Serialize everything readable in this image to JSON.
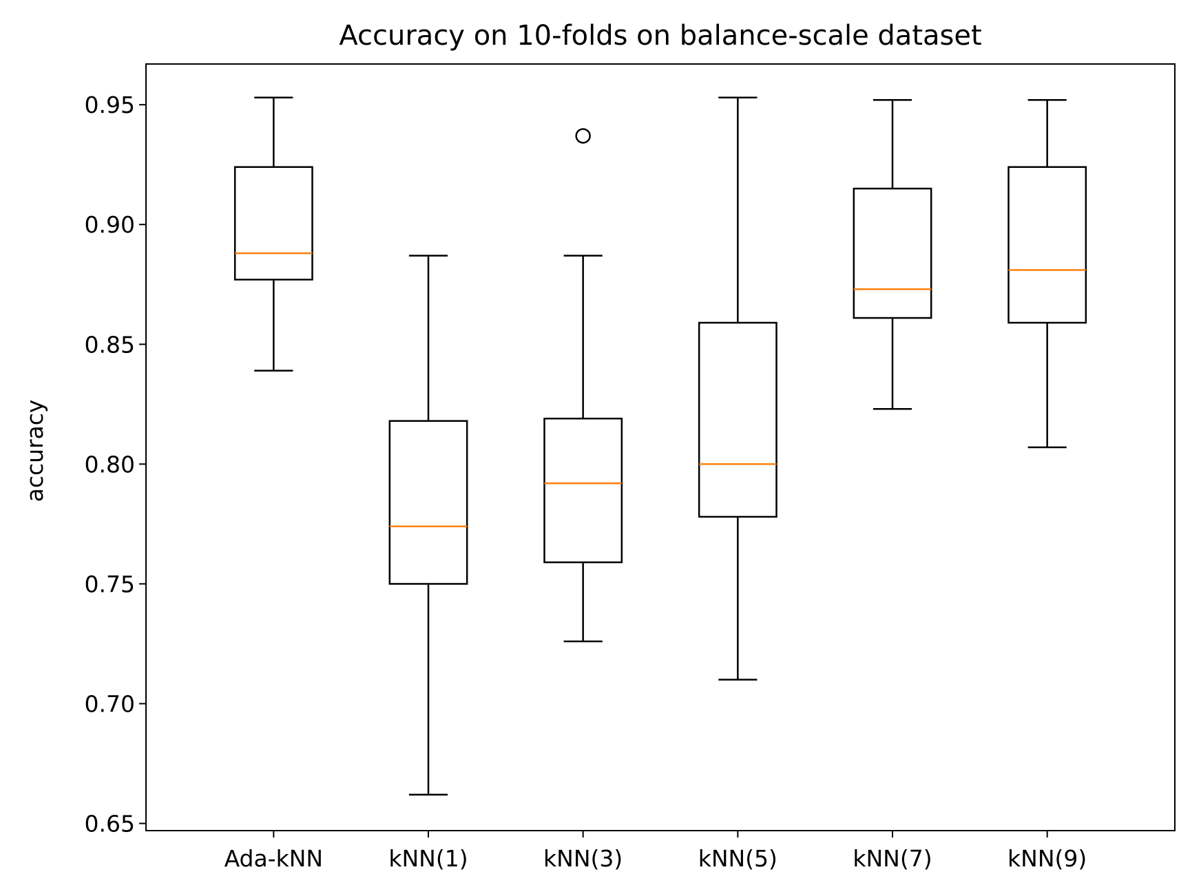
{
  "chart_data": {
    "type": "boxplot",
    "title": "Accuracy on 10-folds on balance-scale dataset",
    "xlabel": "",
    "ylabel": "accuracy",
    "ylim": [
      0.647,
      0.967
    ],
    "yticks": [
      0.65,
      0.7,
      0.75,
      0.8,
      0.85,
      0.9,
      0.95
    ],
    "ytick_labels": [
      "0.65",
      "0.70",
      "0.75",
      "0.80",
      "0.85",
      "0.90",
      "0.95"
    ],
    "grid": false,
    "colors": {
      "box": "#000000",
      "median": "#ff7f0e"
    },
    "boxes": [
      {
        "label": "Ada-kNN",
        "whisker_low": 0.839,
        "q1": 0.877,
        "median": 0.888,
        "q3": 0.924,
        "whisker_high": 0.953,
        "fliers": []
      },
      {
        "label": "kNN(1)",
        "whisker_low": 0.662,
        "q1": 0.75,
        "median": 0.774,
        "q3": 0.818,
        "whisker_high": 0.887,
        "fliers": []
      },
      {
        "label": "kNN(3)",
        "whisker_low": 0.726,
        "q1": 0.759,
        "median": 0.792,
        "q3": 0.819,
        "whisker_high": 0.887,
        "fliers": [
          0.937
        ]
      },
      {
        "label": "kNN(5)",
        "whisker_low": 0.71,
        "q1": 0.778,
        "median": 0.8,
        "q3": 0.859,
        "whisker_high": 0.953,
        "fliers": []
      },
      {
        "label": "kNN(7)",
        "whisker_low": 0.823,
        "q1": 0.861,
        "median": 0.873,
        "q3": 0.915,
        "whisker_high": 0.952,
        "fliers": []
      },
      {
        "label": "kNN(9)",
        "whisker_low": 0.807,
        "q1": 0.859,
        "median": 0.881,
        "q3": 0.924,
        "whisker_high": 0.952,
        "fliers": []
      }
    ]
  }
}
